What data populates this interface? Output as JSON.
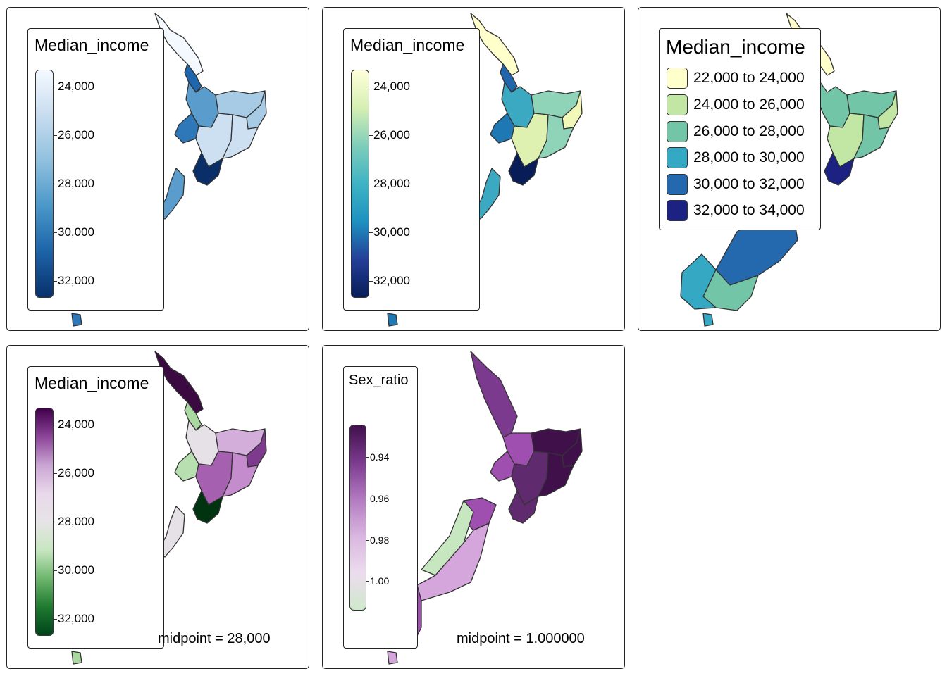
{
  "panels": [
    {
      "legend_title": "Median_income",
      "ticks": [
        "24,000",
        "26,000",
        "28,000",
        "30,000",
        "32,000"
      ],
      "colors": {
        "ramp": [
          "#f4f9ff",
          "#c7dcef",
          "#8fc0de",
          "#4a97c9",
          "#1c63a8",
          "#08306b"
        ]
      }
    },
    {
      "legend_title": "Median_income",
      "ticks": [
        "24,000",
        "26,000",
        "28,000",
        "30,000",
        "32,000"
      ],
      "colors": {
        "ramp": [
          "#ffffd9",
          "#d5efb3",
          "#7ecdbb",
          "#3eb3c4",
          "#1d91c0",
          "#243f98",
          "#081d58"
        ]
      }
    },
    {
      "legend_title": "Median_income",
      "categories": [
        {
          "label": "22,000 to 24,000",
          "color": "#ffffcc"
        },
        {
          "label": "24,000 to 26,000",
          "color": "#c2e6a4"
        },
        {
          "label": "26,000 to 28,000",
          "color": "#72c5a6"
        },
        {
          "label": "28,000 to 30,000",
          "color": "#35a8c4"
        },
        {
          "label": "30,000 to 32,000",
          "color": "#2468ad"
        },
        {
          "label": "32,000 to 34,000",
          "color": "#1c2281"
        }
      ]
    },
    {
      "legend_title": "Median_income",
      "ticks": [
        "24,000",
        "26,000",
        "28,000",
        "30,000",
        "32,000"
      ],
      "midpoint": "midpoint = 28,000",
      "colors": {
        "ramp": [
          "#40004b",
          "#8d4499",
          "#c9a5d3",
          "#e9d8eb",
          "#e6e4e6",
          "#c7e7c0",
          "#6db66d",
          "#1f7a2f",
          "#00441b"
        ]
      }
    },
    {
      "legend_title": "Sex_ratio",
      "ticks": [
        "0.94",
        "0.96",
        "0.98",
        "1.00"
      ],
      "midpoint": "midpoint = 1.000000",
      "colors": {
        "ramp": [
          "#40104b",
          "#7b3a8e",
          "#b27ac0",
          "#dab6e0",
          "#ecdcee",
          "#cfe9cc"
        ]
      }
    }
  ]
}
